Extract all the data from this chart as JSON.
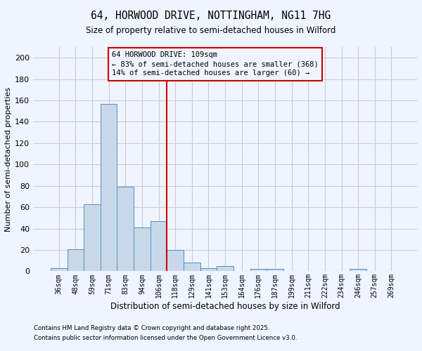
{
  "title1": "64, HORWOOD DRIVE, NOTTINGHAM, NG11 7HG",
  "title2": "Size of property relative to semi-detached houses in Wilford",
  "xlabel": "Distribution of semi-detached houses by size in Wilford",
  "ylabel": "Number of semi-detached properties",
  "annotation_line1": "64 HORWOOD DRIVE: 109sqm",
  "annotation_line2": "← 83% of semi-detached houses are smaller (368)",
  "annotation_line3": "14% of semi-detached houses are larger (60) →",
  "footer1": "Contains HM Land Registry data © Crown copyright and database right 2025.",
  "footer2": "Contains public sector information licensed under the Open Government Licence v3.0.",
  "bin_labels": [
    "36sqm",
    "48sqm",
    "59sqm",
    "71sqm",
    "83sqm",
    "94sqm",
    "106sqm",
    "118sqm",
    "129sqm",
    "141sqm",
    "153sqm",
    "164sqm",
    "176sqm",
    "187sqm",
    "199sqm",
    "211sqm",
    "222sqm",
    "234sqm",
    "246sqm",
    "257sqm",
    "269sqm"
  ],
  "bar_values": [
    3,
    21,
    63,
    157,
    79,
    41,
    47,
    20,
    8,
    3,
    5,
    0,
    2,
    2,
    0,
    0,
    0,
    0,
    2,
    0,
    0
  ],
  "bar_color": "#c8d8e8",
  "bar_edge_color": "#5090c8",
  "vline_x": 6.5,
  "vline_color": "#cc0000",
  "annotation_box_color": "#cc0000",
  "ylim": [
    0,
    210
  ],
  "yticks": [
    0,
    20,
    40,
    60,
    80,
    100,
    120,
    140,
    160,
    180,
    200
  ],
  "grid_color": "#cccccc",
  "bg_color": "#f0f4ff"
}
